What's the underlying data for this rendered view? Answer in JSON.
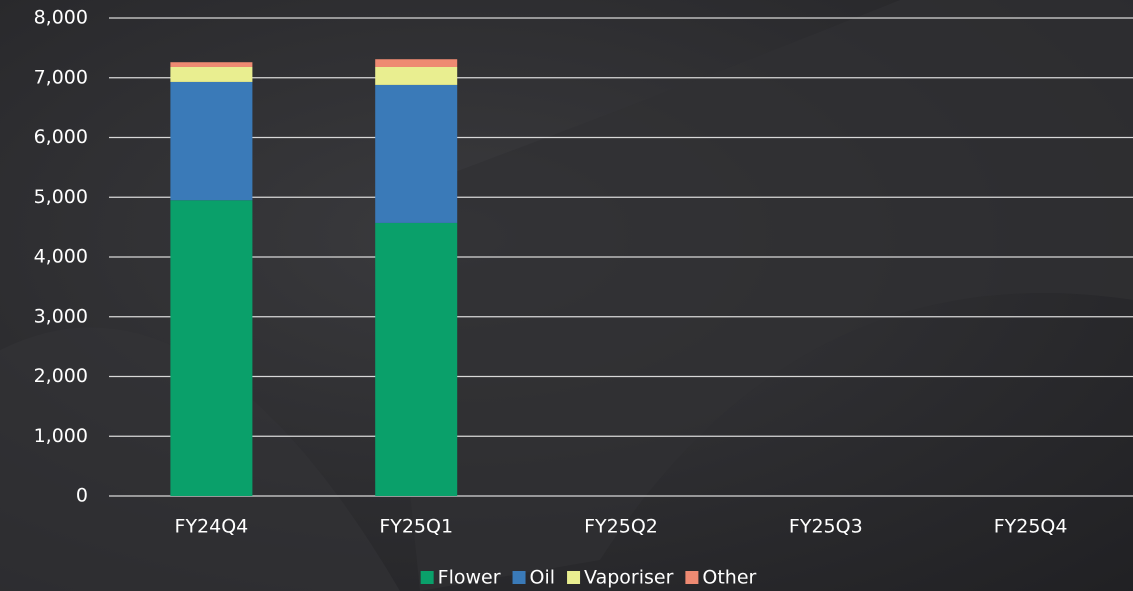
{
  "chart_data": {
    "type": "stacked_bar",
    "categories": [
      "FY24Q4",
      "FY25Q1",
      "FY25Q2",
      "FY25Q3",
      "FY25Q4"
    ],
    "series": [
      {
        "name": "Flower",
        "color": "#0aa06a",
        "values": [
          4950,
          4570,
          null,
          null,
          null
        ]
      },
      {
        "name": "Oil",
        "color": "#3a7ab8",
        "values": [
          1980,
          2310,
          null,
          null,
          null
        ]
      },
      {
        "name": "Vaporiser",
        "color": "#e9ee90",
        "values": [
          250,
          300,
          null,
          null,
          null
        ]
      },
      {
        "name": "Other",
        "color": "#ee8a72",
        "values": [
          80,
          130,
          null,
          null,
          null
        ]
      }
    ],
    "ylim": [
      0,
      8000
    ],
    "yticks": [
      0,
      {
        "value": 1000,
        "label": "1,000"
      },
      {
        "value": 2000,
        "label": "2,000"
      },
      {
        "value": 3000,
        "label": "3,000"
      },
      {
        "value": 4000,
        "label": "4,000"
      },
      {
        "value": 5000,
        "label": "5,000"
      },
      {
        "value": 6000,
        "label": "6,000"
      },
      {
        "value": 7000,
        "label": "7,000"
      },
      {
        "value": 8000,
        "label": "8,000"
      }
    ],
    "grid": true,
    "legend": "bottom"
  }
}
